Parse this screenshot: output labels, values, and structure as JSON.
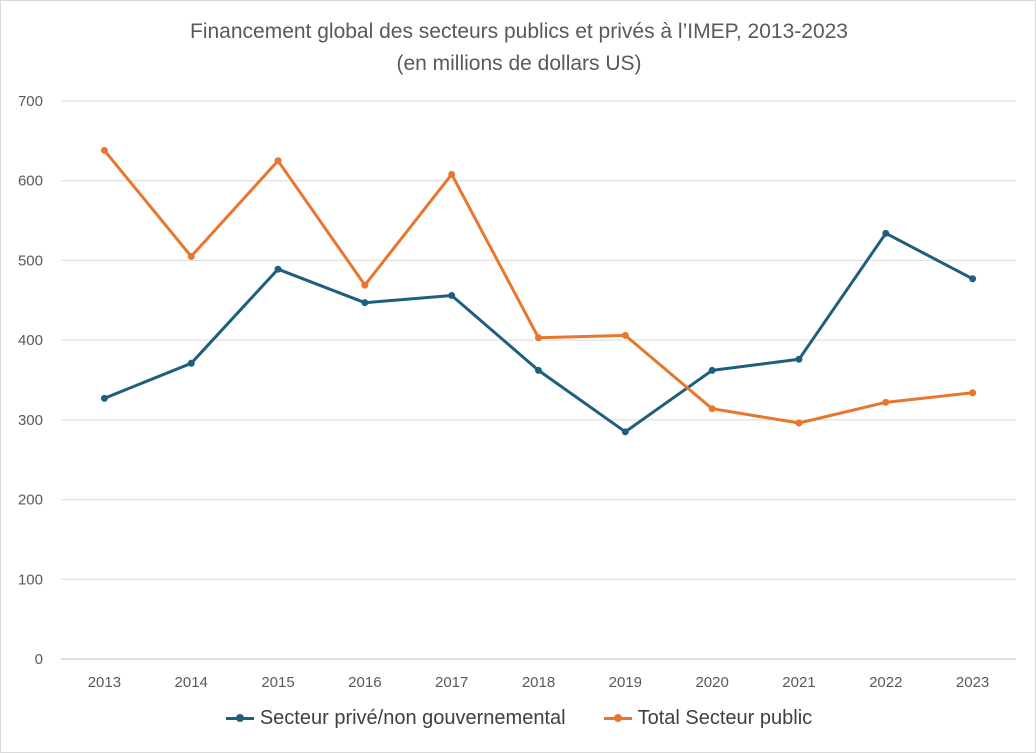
{
  "chart_data": {
    "type": "line",
    "title": "Financement global des secteurs publics et privés à l’IMEP, 2013-2023",
    "subtitle": "(en millions de dollars US)",
    "xlabel": "",
    "ylabel": "",
    "categories": [
      "2013",
      "2014",
      "2015",
      "2016",
      "2017",
      "2018",
      "2019",
      "2020",
      "2021",
      "2022",
      "2023"
    ],
    "ylim": [
      0,
      700
    ],
    "yticks": [
      "0",
      "100",
      "200",
      "300",
      "400",
      "500",
      "600",
      "700"
    ],
    "grid": true,
    "legend_position": "bottom",
    "series": [
      {
        "name": "Secteur privé/non gouvernemental",
        "color": "#1f5f7e",
        "values": [
          327,
          371,
          489,
          447,
          456,
          362,
          285,
          362,
          376,
          534,
          477
        ]
      },
      {
        "name": "Total Secteur public",
        "color": "#e8762c",
        "values": [
          638,
          505,
          625,
          469,
          608,
          403,
          406,
          314,
          296,
          322,
          334
        ]
      }
    ]
  }
}
